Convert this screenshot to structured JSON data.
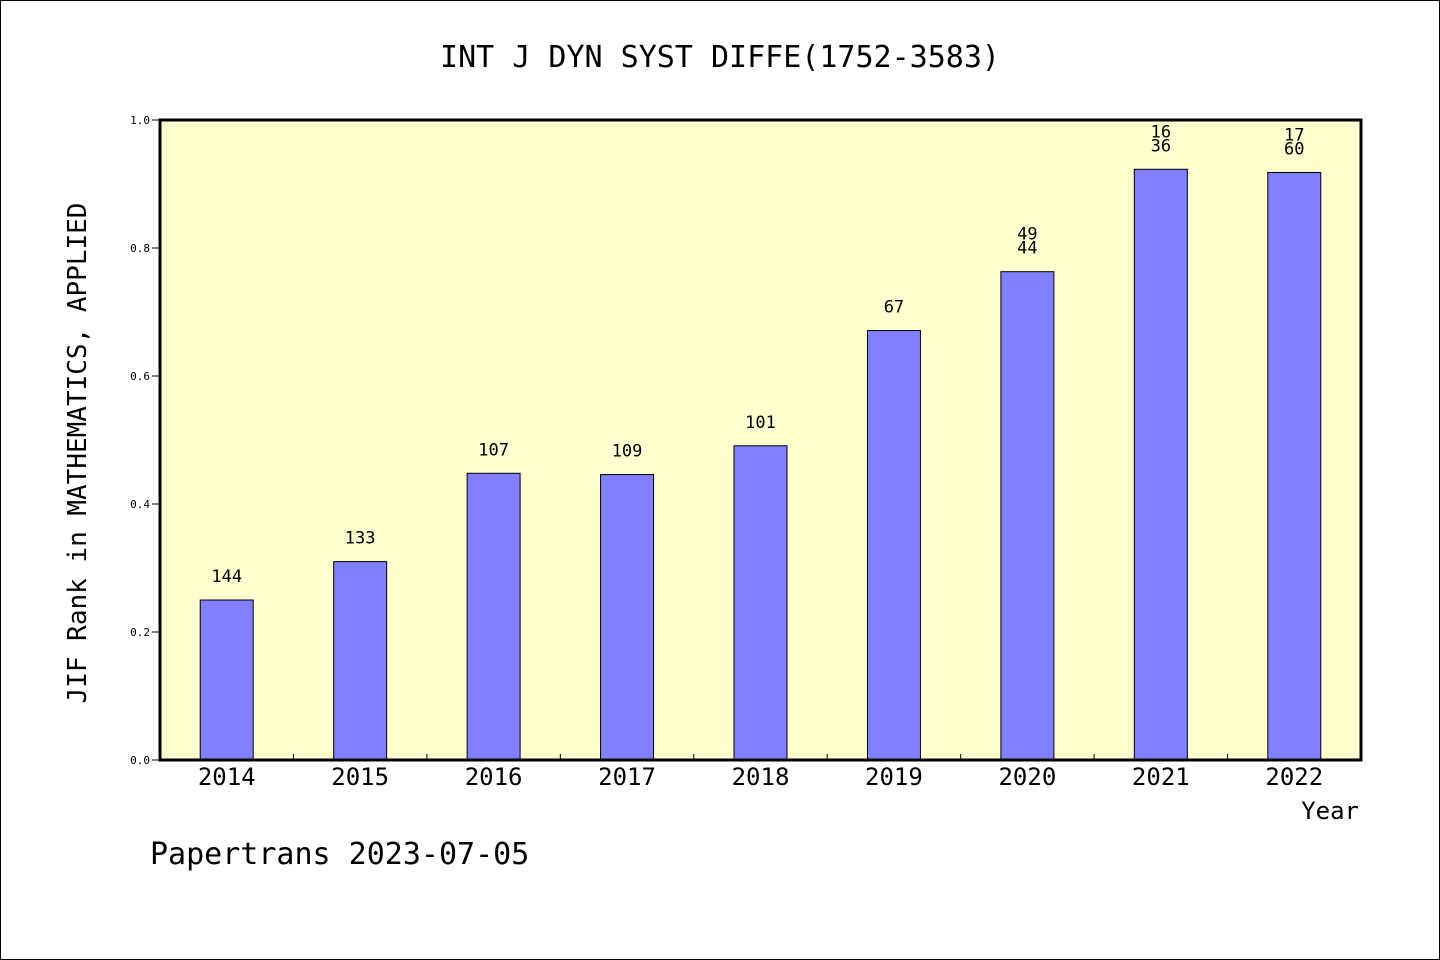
{
  "chart_data": {
    "type": "bar",
    "title": "INT J DYN SYST DIFFE(1752-3583)",
    "xlabel": "Year",
    "ylabel": "JIF Rank in MATHEMATICS, APPLIED",
    "ylim": [
      0.0,
      1.0
    ],
    "yticks": [
      "0.0",
      "0.2",
      "0.4",
      "0.6",
      "0.8",
      "1.0"
    ],
    "grid": false,
    "categories": [
      "2014",
      "2015",
      "2016",
      "2017",
      "2018",
      "2019",
      "2020",
      "2021",
      "2022"
    ],
    "values": [
      0.25,
      0.31,
      0.448,
      0.446,
      0.491,
      0.671,
      0.763,
      0.923,
      0.918
    ],
    "bar_labels": [
      [
        "144"
      ],
      [
        "133"
      ],
      [
        "107"
      ],
      [
        "109"
      ],
      [
        "101"
      ],
      [
        "67"
      ],
      [
        "49",
        "44"
      ],
      [
        "16",
        "36"
      ],
      [
        "17",
        "60"
      ]
    ],
    "colors": {
      "bar_fill": "#8080ff",
      "plot_background": "#ffffd0",
      "axis": "#000000"
    }
  },
  "footer": "Papertrans 2023-07-05"
}
